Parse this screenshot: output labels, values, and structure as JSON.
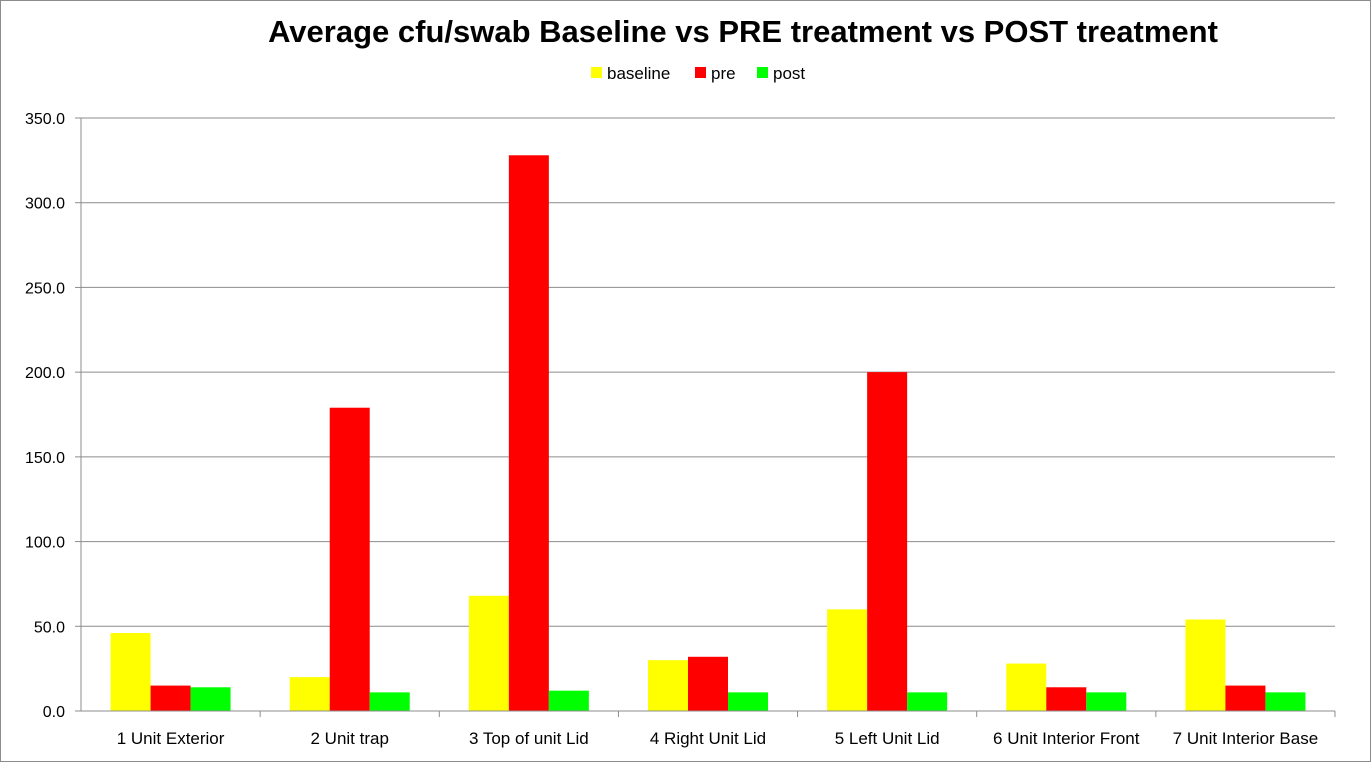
{
  "chart_data": {
    "type": "bar",
    "title": "Average cfu/swab Baseline vs PRE treatment vs POST treatment",
    "xlabel": "",
    "ylabel": "",
    "ylim": [
      0,
      350
    ],
    "yticks": [
      "0.0",
      "50.0",
      "100.0",
      "150.0",
      "200.0",
      "250.0",
      "300.0",
      "350.0"
    ],
    "grid": true,
    "legend_position": "top-center",
    "categories": [
      "1 Unit Exterior",
      "2 Unit trap",
      "3 Top of unit Lid",
      "4 Right Unit Lid",
      "5 Left Unit Lid",
      "6 Unit Interior Front",
      "7 Unit Interior Base"
    ],
    "series": [
      {
        "name": "baseline",
        "color": "#ffff00",
        "values": [
          46,
          20,
          68,
          30,
          60,
          28,
          54
        ]
      },
      {
        "name": "pre",
        "color": "#ff0000",
        "values": [
          15,
          179,
          328,
          32,
          200,
          14,
          15
        ]
      },
      {
        "name": "post",
        "color": "#00ff00",
        "values": [
          14,
          11,
          12,
          11,
          11,
          11,
          11
        ]
      }
    ]
  }
}
